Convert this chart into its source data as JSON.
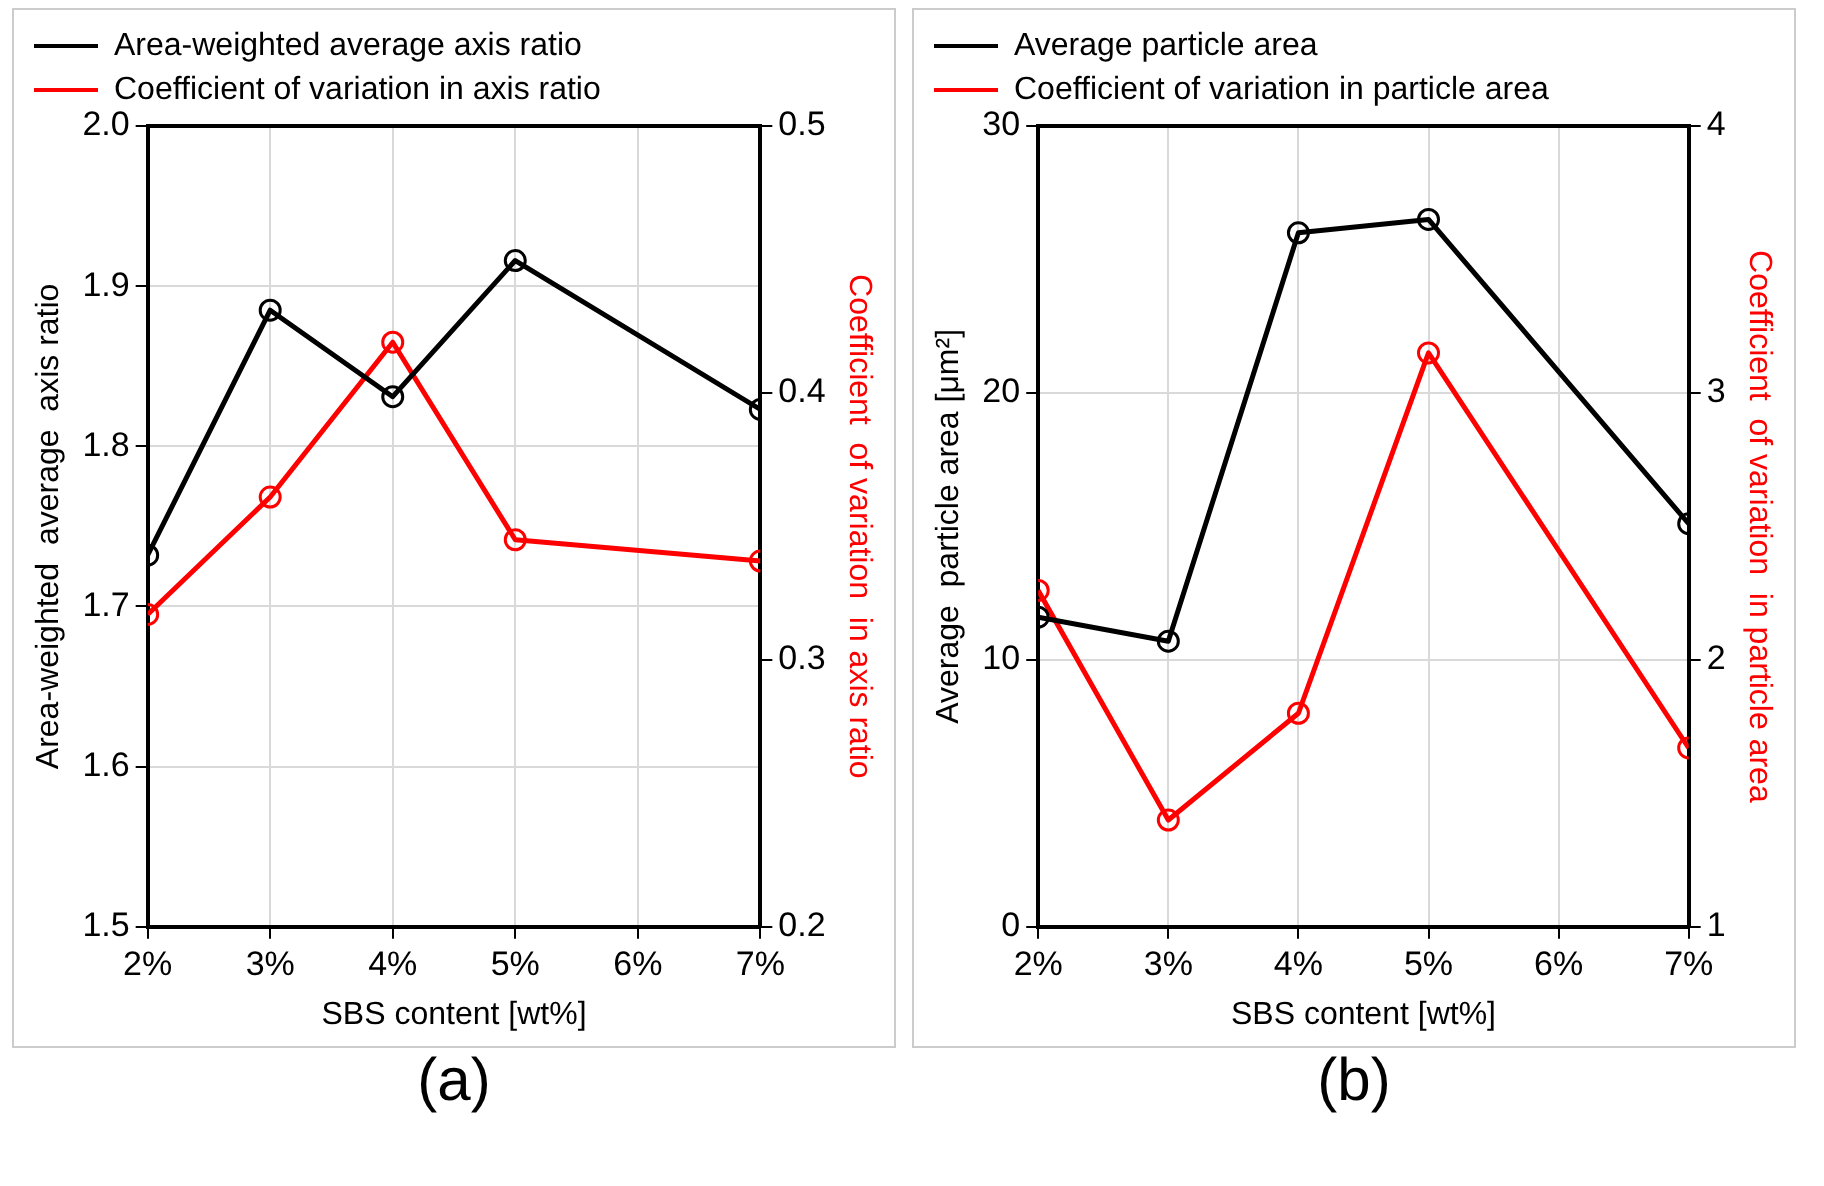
{
  "chart_data": [
    {
      "type": "line",
      "xlabel": "SBS content [wt%]",
      "ylabel": "Area-weighted  average  axis ratio",
      "y2label": "Coefficient  of variation  in axis ratio",
      "x": [
        2,
        3,
        4,
        5,
        7
      ],
      "series": [
        {
          "name": "Area-weighted average axis ratio",
          "color": "#000000",
          "values": [
            1.732,
            1.885,
            1.831,
            1.916,
            1.823
          ]
        },
        {
          "name": "Coefficient of variation in axis ratio",
          "color": "#ff0000",
          "axis": "y2",
          "values": [
            0.317,
            0.361,
            0.419,
            0.345,
            0.337
          ]
        }
      ],
      "xlim": [
        2,
        7
      ],
      "xticks": [
        {
          "value": 2,
          "label": "2%"
        },
        {
          "value": 3,
          "label": "3%"
        },
        {
          "value": 4,
          "label": "4%"
        },
        {
          "value": 5,
          "label": "5%"
        },
        {
          "value": 6,
          "label": "6%"
        },
        {
          "value": 7,
          "label": "7%"
        }
      ],
      "ylim": [
        1.5,
        2.0
      ],
      "yticks": [
        {
          "value": 1.5,
          "label": "1.5"
        },
        {
          "value": 1.6,
          "label": "1.6"
        },
        {
          "value": 1.7,
          "label": "1.7"
        },
        {
          "value": 1.8,
          "label": "1.8"
        },
        {
          "value": 1.9,
          "label": "1.9"
        },
        {
          "value": 2.0,
          "label": "2.0"
        }
      ],
      "y2lim": [
        0.2,
        0.5
      ],
      "y2ticks": [
        0.2,
        0.3,
        0.4,
        0.5
      ],
      "grid": true,
      "legend": "top",
      "marker": "circle",
      "line_style": "solid",
      "annotations": [
        "(a)"
      ]
    },
    {
      "type": "line",
      "xlabel": "SBS content [wt%]",
      "ylabel": "Average  particle area [μm²]",
      "y2label": "Coefficient  of variation  in particle area",
      "x": [
        2,
        3,
        4,
        5,
        7
      ],
      "series": [
        {
          "name": "Average particle area",
          "color": "#000000",
          "values": [
            11.6,
            10.7,
            26.0,
            26.5,
            15.1
          ]
        },
        {
          "name": "Coefficient of variation in particle area",
          "color": "#ff0000",
          "axis": "y2",
          "values": [
            2.26,
            1.4,
            1.8,
            3.15,
            1.67
          ]
        }
      ],
      "xlim": [
        2,
        7
      ],
      "xticks": [
        {
          "value": 2,
          "label": "2%"
        },
        {
          "value": 3,
          "label": "3%"
        },
        {
          "value": 4,
          "label": "4%"
        },
        {
          "value": 5,
          "label": "5%"
        },
        {
          "value": 6,
          "label": "6%"
        },
        {
          "value": 7,
          "label": "7%"
        }
      ],
      "ylim": [
        0,
        30
      ],
      "yticks": [
        0,
        10,
        20,
        30
      ],
      "y2lim": [
        1,
        4
      ],
      "y2ticks": [
        1,
        2,
        3,
        4
      ],
      "grid": true,
      "legend": "top",
      "marker": "circle",
      "line_style": "solid",
      "annotations": [
        "(b)"
      ]
    }
  ]
}
